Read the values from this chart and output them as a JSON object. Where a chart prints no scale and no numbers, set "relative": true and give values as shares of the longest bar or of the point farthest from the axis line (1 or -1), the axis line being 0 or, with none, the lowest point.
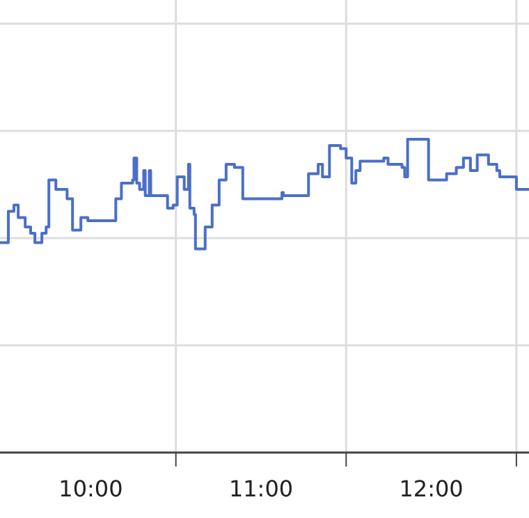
{
  "chart_data": {
    "type": "step",
    "relative": true,
    "grid": true,
    "x": [
      9.467,
      9.516,
      9.549,
      9.574,
      9.615,
      9.647,
      9.672,
      9.713,
      9.738,
      9.754,
      9.795,
      9.861,
      9.893,
      9.942,
      9.983,
      10.147,
      10.18,
      10.246,
      10.254,
      10.27,
      10.287,
      10.311,
      10.32,
      10.344,
      10.352,
      10.385,
      10.451,
      10.484,
      10.508,
      10.549,
      10.574,
      10.582,
      10.607,
      10.615,
      10.672,
      10.713,
      10.754,
      10.795,
      10.844,
      10.893,
      11.107,
      11.123,
      11.131,
      11.279,
      11.336,
      11.361,
      11.402,
      11.467,
      11.5,
      11.533,
      11.557,
      11.582,
      11.721,
      11.746,
      11.828,
      11.844,
      11.861,
      11.951,
      11.984,
      12.09,
      12.147,
      12.189,
      12.23,
      12.27,
      12.336,
      12.385,
      12.402,
      12.5,
      12.574
    ],
    "series": [
      {
        "color": "#4a6fc8",
        "values": [
          0.67,
          0.77,
          0.79,
          0.75,
          0.72,
          0.7,
          0.67,
          0.7,
          0.72,
          0.87,
          0.84,
          0.81,
          0.71,
          0.75,
          0.74,
          0.81,
          0.86,
          0.87,
          0.94,
          0.86,
          0.84,
          0.9,
          0.82,
          0.9,
          0.82,
          0.82,
          0.78,
          0.79,
          0.88,
          0.84,
          0.92,
          0.78,
          0.76,
          0.65,
          0.72,
          0.79,
          0.87,
          0.92,
          0.91,
          0.81,
          0.81,
          0.83,
          0.82,
          0.89,
          0.92,
          0.88,
          0.98,
          0.97,
          0.94,
          0.86,
          0.9,
          0.93,
          0.94,
          0.92,
          0.91,
          0.88,
          1,
          1,
          0.87,
          0.89,
          0.91,
          0.94,
          0.9,
          0.95,
          0.92,
          0.9,
          0.88,
          0.84,
          0.84
        ]
      }
    ],
    "xlim": [
      9.467,
      12.574
    ],
    "xticks": [
      {
        "value": 10,
        "label": "10:00"
      },
      {
        "value": 10.5,
        "label": null
      },
      {
        "value": 11,
        "label": "11:00"
      },
      {
        "value": 11.5,
        "label": null
      },
      {
        "value": 12,
        "label": "12:00"
      },
      {
        "value": 12.5,
        "label": null
      }
    ]
  }
}
